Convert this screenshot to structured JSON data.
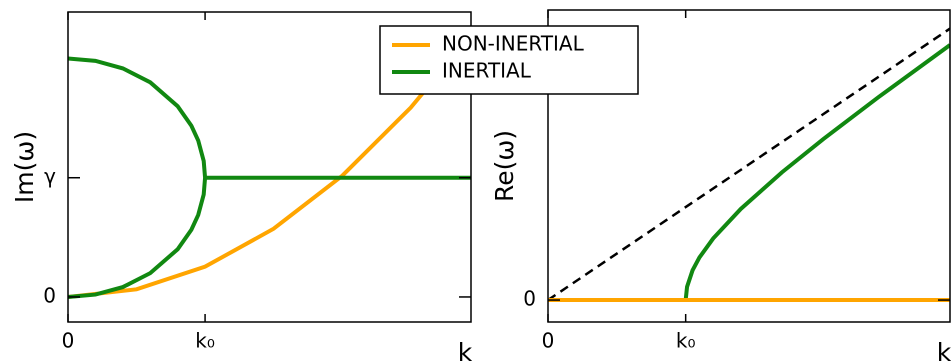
{
  "chart_data": [
    {
      "type": "line",
      "ylabel": "Im(ω)",
      "xlabel": "k",
      "xlim": [
        0,
        2.94
      ],
      "ylim": [
        -0.21,
        2.39
      ],
      "xticks": [
        0,
        {
          "value": 1,
          "label": "k₀"
        }
      ],
      "yticks": [
        0,
        {
          "value": 1,
          "label": "γ"
        }
      ],
      "series": [
        {
          "name": "NON-INERTIAL",
          "color": "#ffa500",
          "x": [
            0,
            0.5,
            1,
            1.5,
            2,
            2.5,
            2.94
          ],
          "values": [
            0,
            0.064,
            0.254,
            0.572,
            1.016,
            1.588,
            2.195
          ]
        },
        {
          "name": "INERTIAL",
          "color": "#118811",
          "x": [
            0,
            0.2,
            0.4,
            0.6,
            0.8,
            0.9,
            0.95,
            0.99,
            1,
            0.99,
            0.95,
            0.9,
            0.8,
            0.6,
            0.4,
            0.2,
            0,
            null,
            1,
            2.94
          ],
          "values": [
            2,
            1.98,
            1.917,
            1.8,
            1.6,
            1.436,
            1.312,
            1.141,
            1,
            0.859,
            0.688,
            0.564,
            0.4,
            0.2,
            0.083,
            0.02,
            0,
            null,
            1,
            1
          ]
        }
      ]
    },
    {
      "type": "line",
      "ylabel": "Re(ω)",
      "xlabel": "k",
      "xlim": [
        0,
        2.92
      ],
      "ylim": [
        -0.236,
        3.12
      ],
      "xticks": [
        0,
        {
          "value": 1,
          "label": "k₀"
        }
      ],
      "yticks": [
        0
      ],
      "series": [
        {
          "color": "#000000",
          "dashed": true,
          "x": [
            0,
            2.92
          ],
          "values": [
            0,
            2.92
          ]
        },
        {
          "color": "#118811",
          "x": [
            1,
            1.01,
            1.05,
            1.1,
            1.2,
            1.4,
            1.7,
            2,
            2.4,
            2.92
          ],
          "values": [
            0,
            0.142,
            0.32,
            0.458,
            0.663,
            0.98,
            1.375,
            1.732,
            2.182,
            2.743
          ]
        },
        {
          "color": "#ffa500",
          "x": [
            0,
            2.92
          ],
          "values": [
            0,
            0
          ]
        }
      ]
    }
  ]
}
